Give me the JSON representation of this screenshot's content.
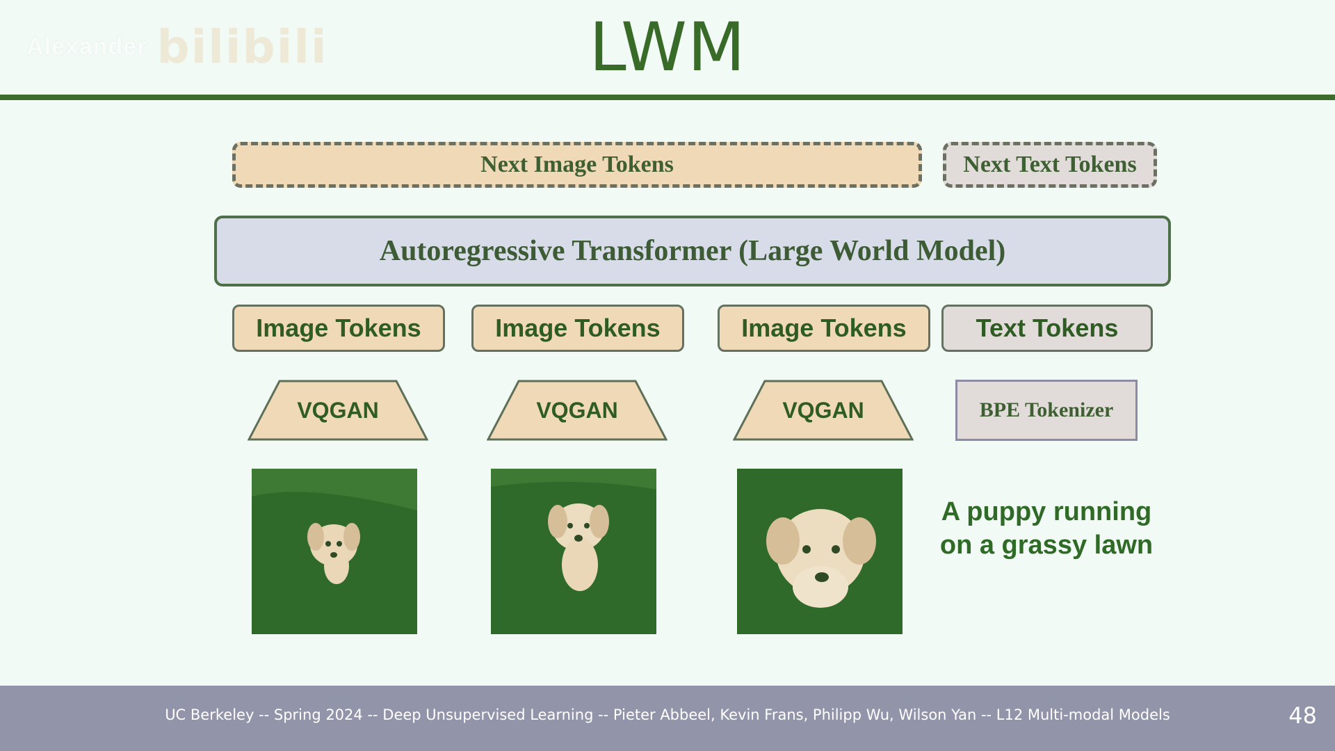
{
  "slide": {
    "title": "LWM",
    "watermark_user": "Alexander",
    "watermark_logo": "bilibili"
  },
  "diagram": {
    "outputs": [
      "Next Image Tokens",
      "Next Text Tokens"
    ],
    "model": "Autoregressive Transformer (Large World Model)",
    "token_boxes": [
      "Image Tokens",
      "Image Tokens",
      "Image Tokens",
      "Text Tokens"
    ],
    "encoders": [
      "VQGAN",
      "VQGAN",
      "VQGAN",
      "BPE Tokenizer"
    ],
    "frames": [
      "puppy-frame-1",
      "puppy-frame-2",
      "puppy-frame-3"
    ],
    "caption_line1": "A puppy running",
    "caption_line2": "on a grassy lawn"
  },
  "colors": {
    "accent_green": "#386a28",
    "tan_box": "#efd9b7",
    "grey_box": "#e1dcd9",
    "transformer_box": "#d8dce8",
    "footer": "#9294aa"
  },
  "footer": {
    "text": "UC Berkeley -- Spring 2024 -- Deep Unsupervised Learning -- Pieter Abbeel, Kevin Frans, Philipp Wu, Wilson Yan  -- L12 Multi-modal Models",
    "page_number": "48"
  }
}
